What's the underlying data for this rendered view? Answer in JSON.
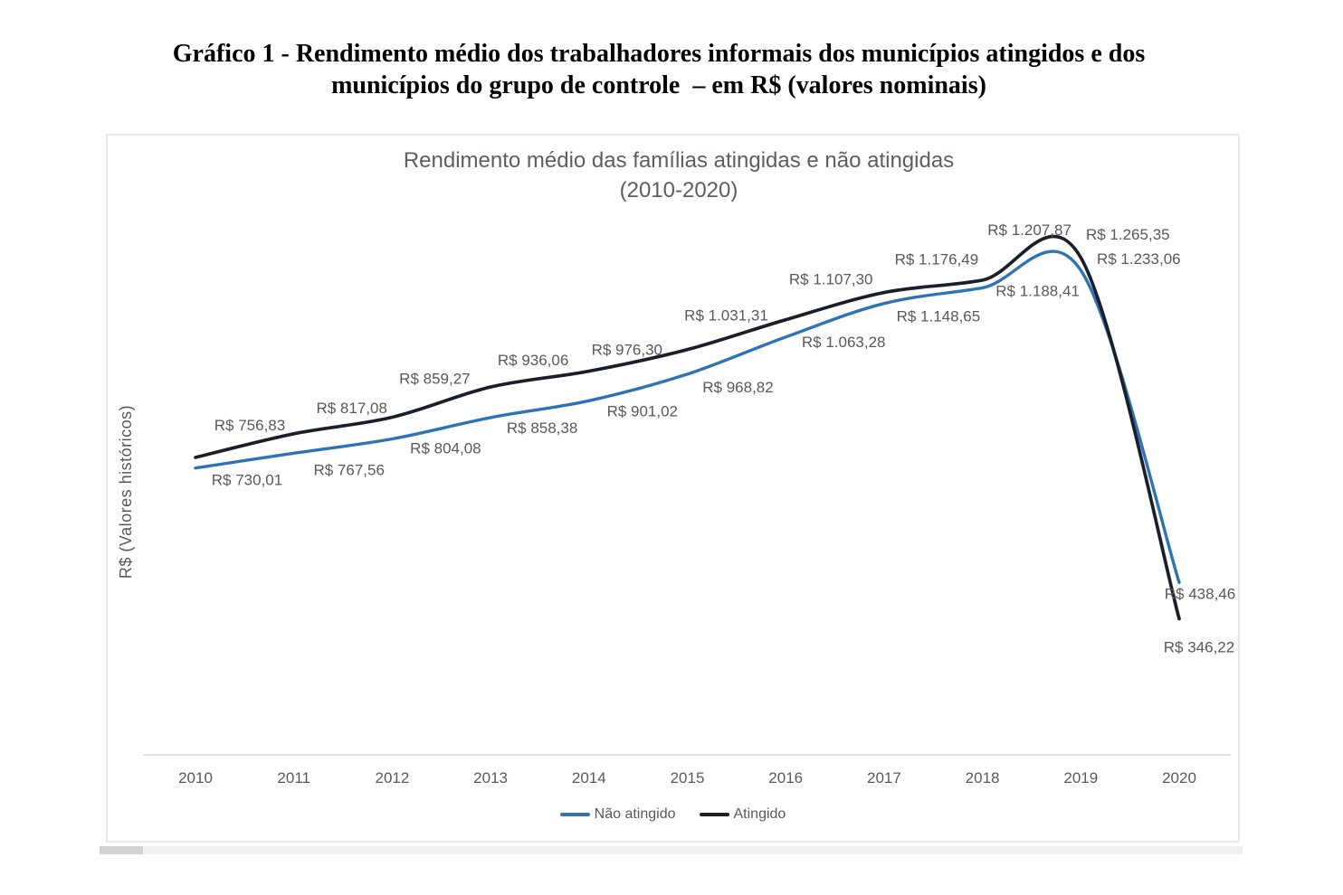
{
  "heading": {
    "line1": "Gráfico 1 - Rendimento médio dos trabalhadores informais dos municípios atingidos e dos",
    "line2": "municípios do grupo de controle  – em R$ (valores nominais)"
  },
  "chart_data": {
    "type": "line",
    "title": "Rendimento médio das famílias atingidas e não atingidas",
    "subtitle": "(2010-2020)",
    "ylabel": "R$ (Valores históricos)",
    "xlabel": "",
    "categories": [
      "2010",
      "2011",
      "2012",
      "2013",
      "2014",
      "2015",
      "2016",
      "2017",
      "2018",
      "2019",
      "2020"
    ],
    "series": [
      {
        "name": "Não atingido",
        "color": "#2e73b4",
        "values": [
          730.01,
          767.56,
          804.08,
          858.38,
          901.02,
          968.82,
          1063.28,
          1148.65,
          1188.41,
          1233.06,
          438.46
        ],
        "labels": [
          "R$ 730,01",
          "R$ 767,56",
          "R$ 804,08",
          "R$ 858,38",
          "R$ 901,02",
          "R$ 968,82",
          "R$ 1.063,28",
          "R$ 1.148,65",
          "R$ 1.188,41",
          "R$ 1.233,06",
          "R$ 438,46"
        ]
      },
      {
        "name": "Atingido",
        "color": "#1a202b",
        "values": [
          756.83,
          817.08,
          859.27,
          936.06,
          976.3,
          1031.31,
          1107.3,
          1176.49,
          1207.87,
          1265.35,
          346.22
        ],
        "labels": [
          "R$ 756,83",
          "R$ 817,08",
          "R$ 859,27",
          "R$ 936,06",
          "R$ 976,30",
          "R$ 1.031,31",
          "R$ 1.107,30",
          "R$ 1.176,49",
          "R$ 1.207,87",
          "R$ 1.265,35",
          "R$ 346,22"
        ]
      }
    ],
    "ylim": [
      0,
      1400
    ],
    "grid": false,
    "smooth": true,
    "legend_position": "bottom",
    "label_color": "#595959",
    "axis_color": "#d9d9d9"
  }
}
